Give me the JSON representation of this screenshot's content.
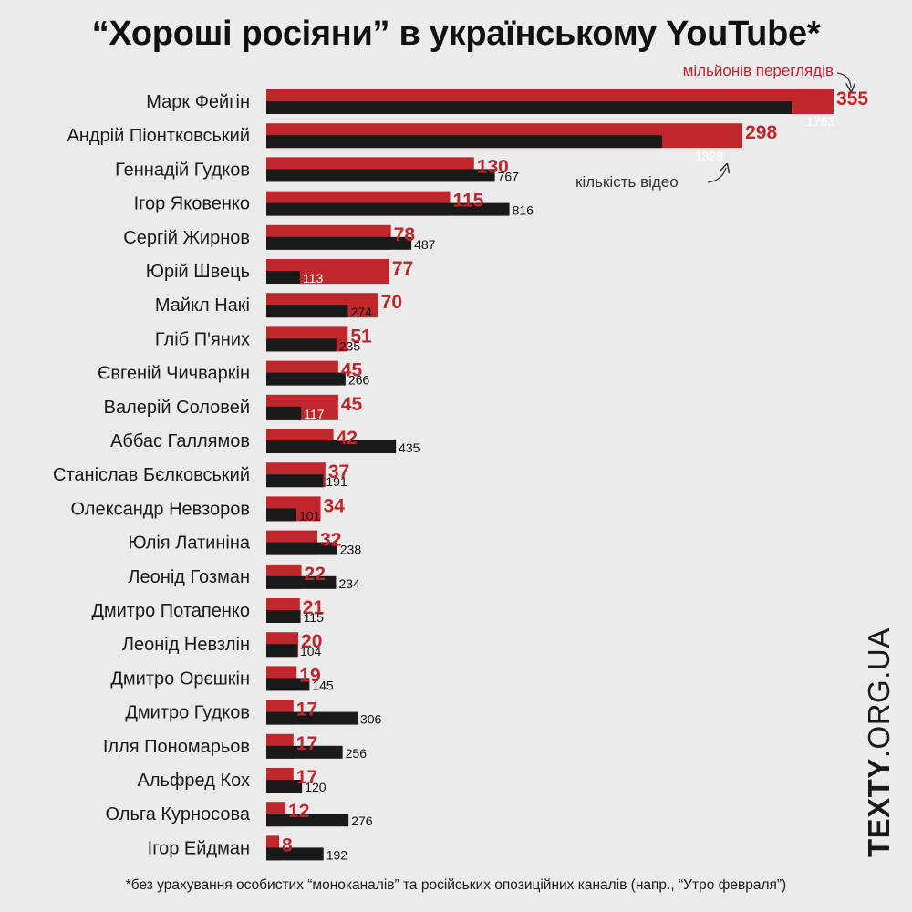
{
  "title": "“Хороші росіяни” в українському YouTube*",
  "legend": {
    "views": "мільйонів переглядів",
    "videos": "кількість відео"
  },
  "footnote": "*без урахування особистих “моноканалів” та російських опозиційних каналів (напр., “Утро февраля”)",
  "brand": {
    "bold": "TEXTY",
    "light": ".ORG.UA"
  },
  "colors": {
    "views": "#c0272d",
    "videos": "#1a1a1a",
    "background": "#ebebeb"
  },
  "chart_data": {
    "type": "bar",
    "orientation": "horizontal",
    "categories": [
      "Марк Фейгін",
      "Андрій Піонтковський",
      "Геннадій Гудков",
      "Ігор Яковенко",
      "Сергій Жирнов",
      "Юрій Швець",
      "Майкл Накі",
      "Гліб П'яних",
      "Євгеній Чичваркін",
      "Валерій Соловей",
      "Аббас Галлямов",
      "Станіслав Бєлковський",
      "Олександр Невзоров",
      "Юлія Латиніна",
      "Леонід Гозман",
      "Дмитро Потапенко",
      "Леонід Невзлін",
      "Дмитро Орєшкін",
      "Дмитро Гудков",
      "Ілля Пономарьов",
      "Альфред Кох",
      "Ольга Курносова",
      "Ігор Ейдман"
    ],
    "series": [
      {
        "name": "мільйонів переглядів",
        "values": [
          355,
          298,
          130,
          115,
          78,
          77,
          70,
          51,
          45,
          45,
          42,
          37,
          34,
          32,
          22,
          21,
          20,
          19,
          17,
          17,
          17,
          12,
          8
        ]
      },
      {
        "name": "кількість відео",
        "values": [
          1763,
          1328,
          767,
          816,
          487,
          113,
          274,
          235,
          266,
          117,
          435,
          191,
          101,
          238,
          234,
          115,
          104,
          145,
          306,
          256,
          120,
          276,
          192
        ]
      }
    ],
    "legend_position": "top-right",
    "grid": false
  }
}
